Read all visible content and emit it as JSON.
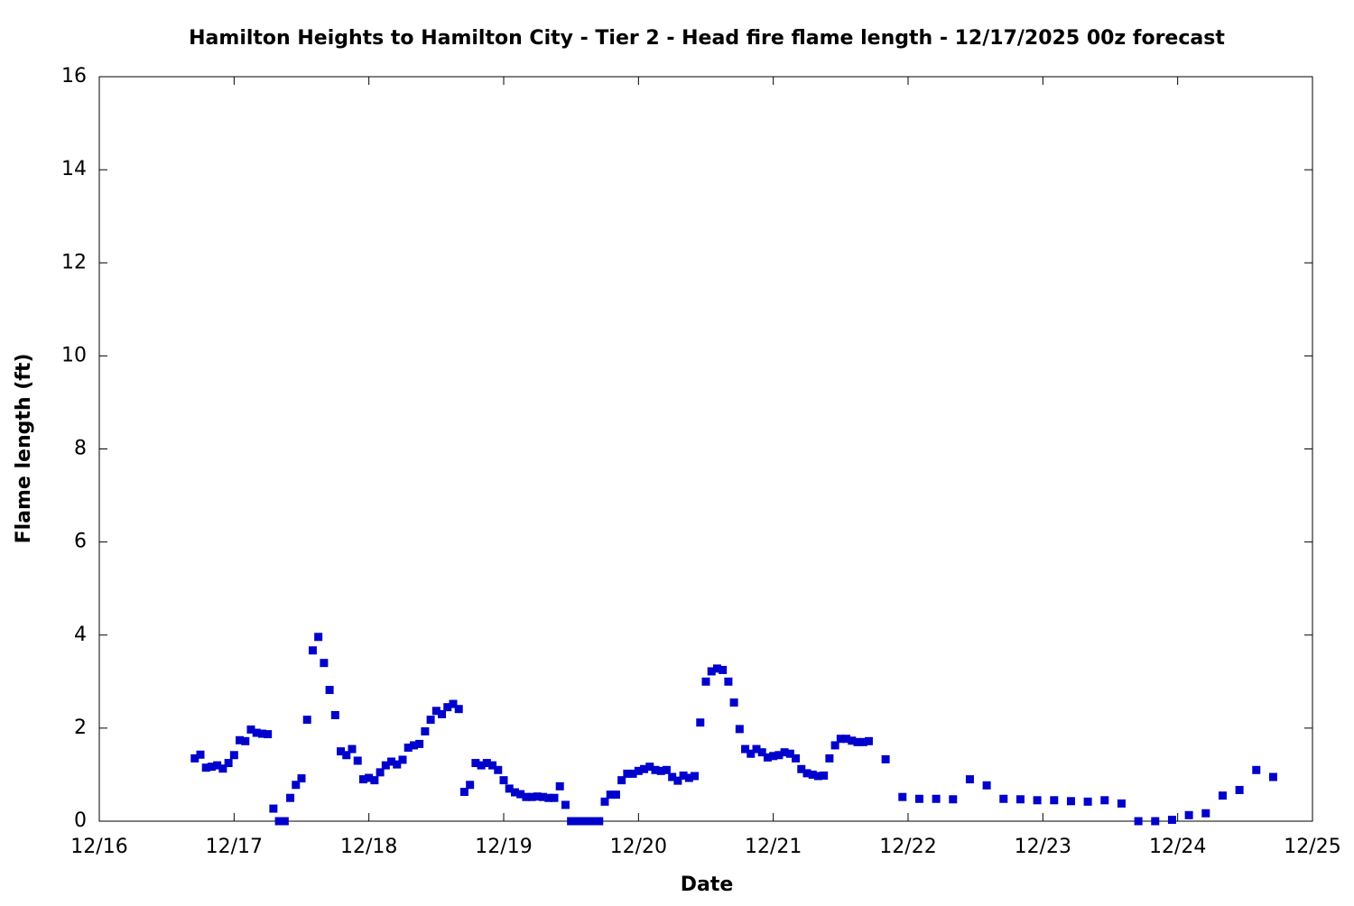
{
  "chart_data": {
    "type": "scatter",
    "title": "Hamilton Heights to Hamilton City - Tier 2 - Head fire flame length - 12/17/2025 00z forecast",
    "xlabel": "Date",
    "ylabel": "Flame length (ft)",
    "xlim": [
      0,
      216
    ],
    "ylim": [
      0,
      16
    ],
    "xticks": [
      {
        "value": 0,
        "label": "12/16"
      },
      {
        "value": 24,
        "label": "12/17"
      },
      {
        "value": 48,
        "label": "12/18"
      },
      {
        "value": 72,
        "label": "12/19"
      },
      {
        "value": 96,
        "label": "12/20"
      },
      {
        "value": 120,
        "label": "12/21"
      },
      {
        "value": 144,
        "label": "12/22"
      },
      {
        "value": 168,
        "label": "12/23"
      },
      {
        "value": 192,
        "label": "12/24"
      },
      {
        "value": 216,
        "label": "12/25"
      }
    ],
    "yticks": [
      0,
      2,
      4,
      6,
      8,
      10,
      12,
      14,
      16
    ],
    "grid": false,
    "series": [
      {
        "color": "#0000cc",
        "x": [
          17,
          18,
          19,
          20,
          21,
          22,
          23,
          24,
          25,
          26,
          27,
          28,
          29,
          30,
          31,
          32,
          33,
          34,
          35,
          36,
          37,
          38,
          39,
          40,
          41,
          42,
          43,
          44,
          45,
          46,
          47,
          48,
          49,
          50,
          51,
          52,
          53,
          54,
          55,
          56,
          57,
          58,
          59,
          60,
          61,
          62,
          63,
          64,
          65,
          66,
          67,
          68,
          69,
          70,
          71,
          72,
          73,
          74,
          75,
          76,
          77,
          78,
          79,
          80,
          81,
          82,
          83,
          84,
          85,
          86,
          87,
          88,
          89,
          90,
          91,
          92,
          93,
          94,
          95,
          96,
          97,
          98,
          99,
          100,
          101,
          102,
          103,
          104,
          105,
          106,
          107,
          108,
          109,
          110,
          111,
          112,
          113,
          114,
          115,
          116,
          117,
          118,
          119,
          120,
          121,
          122,
          123,
          124,
          125,
          126,
          127,
          128,
          129,
          130,
          131,
          132,
          133,
          134,
          135,
          136,
          137,
          140,
          143,
          146,
          149,
          152,
          155,
          158,
          161,
          164,
          167,
          170,
          173,
          176,
          179,
          182,
          185,
          188,
          191,
          194,
          197,
          200,
          203,
          206,
          209
        ],
        "values": [
          1.35,
          1.43,
          1.15,
          1.17,
          1.2,
          1.13,
          1.25,
          1.42,
          1.74,
          1.72,
          1.97,
          1.9,
          1.88,
          1.87,
          0.27,
          0,
          0,
          0.5,
          0.78,
          0.92,
          2.18,
          3.67,
          3.96,
          3.4,
          2.82,
          2.28,
          1.5,
          1.42,
          1.55,
          1.3,
          0.9,
          0.93,
          0.88,
          1.05,
          1.2,
          1.28,
          1.22,
          1.32,
          1.58,
          1.63,
          1.66,
          1.93,
          2.18,
          2.37,
          2.3,
          2.45,
          2.52,
          2.41,
          0.63,
          0.78,
          1.25,
          1.2,
          1.25,
          1.2,
          1.1,
          0.88,
          0.7,
          0.62,
          0.58,
          0.52,
          0.52,
          0.53,
          0.52,
          0.5,
          0.5,
          0.75,
          0.35,
          0,
          0,
          0,
          0,
          0,
          0,
          0.42,
          0.57,
          0.57,
          0.88,
          1.02,
          1.02,
          1.08,
          1.12,
          1.17,
          1.1,
          1.08,
          1.1,
          0.95,
          0.87,
          0.98,
          0.93,
          0.97,
          2.12,
          3.0,
          3.22,
          3.28,
          3.25,
          3.0,
          2.55,
          1.98,
          1.55,
          1.45,
          1.55,
          1.48,
          1.37,
          1.4,
          1.42,
          1.48,
          1.45,
          1.35,
          1.12,
          1.03,
          1.0,
          0.97,
          0.98,
          1.35,
          1.63,
          1.77,
          1.77,
          1.73,
          1.7,
          1.7,
          1.72,
          1.33,
          0.52,
          0.48,
          0.48,
          0.47,
          0.9,
          0.77,
          0.48,
          0.47,
          0.45,
          0.45,
          0.43,
          0.42,
          0.45,
          0.38,
          0,
          0,
          0.03,
          0.13,
          0.17,
          0.55,
          0.67,
          1.1,
          0.95
        ]
      }
    ]
  }
}
